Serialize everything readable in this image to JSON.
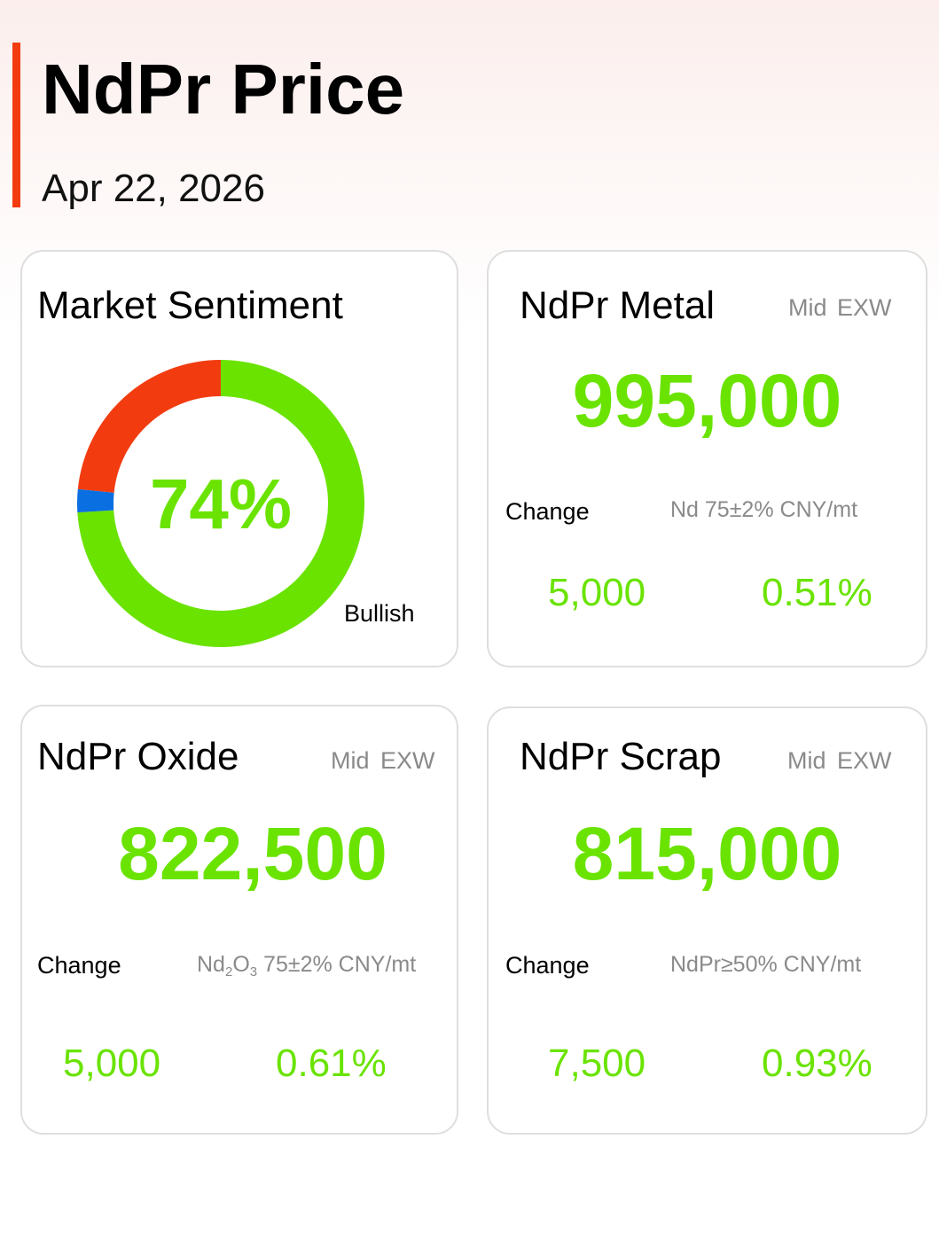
{
  "header": {
    "title": "NdPr Price",
    "date": "Apr 22, 2026"
  },
  "sentiment": {
    "title": "Market Sentiment",
    "percent_label": "74%",
    "label": "Bullish",
    "segments": [
      {
        "name": "bullish",
        "fraction": 0.74,
        "color": "#6ae300"
      },
      {
        "name": "neutral",
        "fraction": 0.026,
        "color": "#0a6fe0"
      },
      {
        "name": "bearish",
        "fraction": 0.234,
        "color": "#f23c10"
      }
    ]
  },
  "metal": {
    "title": "NdPr Metal",
    "tag_mid": "Mid",
    "tag_exw": "EXW",
    "price": "995,000",
    "change_label": "Change",
    "spec": "Nd 75±2% CNY/mt",
    "change_value": "5,000",
    "change_pct": "0.51%"
  },
  "oxide": {
    "title": "NdPr Oxide",
    "tag_mid": "Mid",
    "tag_exw": "EXW",
    "price": "822,500",
    "change_label": "Change",
    "spec_prefix": "Nd",
    "spec_sub1": "2",
    "spec_mid": "O",
    "spec_sub2": "3",
    "spec_suffix": " 75±2% CNY/mt",
    "change_value": "5,000",
    "change_pct": "0.61%"
  },
  "scrap": {
    "title": "NdPr Scrap",
    "tag_mid": "Mid",
    "tag_exw": "EXW",
    "price": "815,000",
    "change_label": "Change",
    "spec": "NdPr≥50% CNY/mt",
    "change_value": "7,500",
    "change_pct": "0.93%"
  },
  "colors": {
    "accent": "#f23c10",
    "up_green": "#6ae300",
    "neutral_blue": "#0a6fe0",
    "muted_text": "#8a8a8a"
  }
}
